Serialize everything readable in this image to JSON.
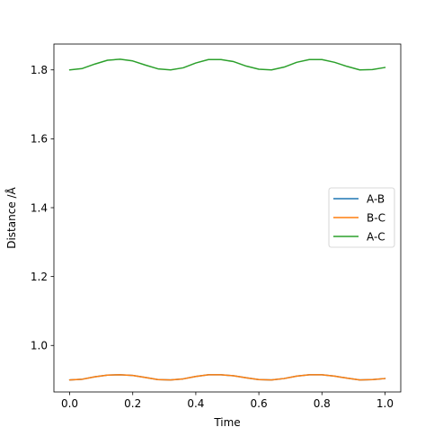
{
  "chart_data": {
    "type": "line",
    "title": "",
    "xlabel": "Time",
    "ylabel": "Distance /Å",
    "xlim": [
      -0.05,
      1.05
    ],
    "ylim": [
      0.865,
      1.875
    ],
    "xticks": [
      0.0,
      0.2,
      0.4,
      0.6,
      0.8,
      1.0
    ],
    "xtick_labels": [
      "0.0",
      "0.2",
      "0.4",
      "0.6",
      "0.8",
      "1.0"
    ],
    "yticks": [
      1.0,
      1.2,
      1.4,
      1.6,
      1.8
    ],
    "ytick_labels": [
      "1.0",
      "1.2",
      "1.4",
      "1.6",
      "1.8"
    ],
    "grid": false,
    "legend_position": "center-right",
    "series": [
      {
        "name": "A-B",
        "color": "#1f77b4",
        "x": [
          0.0,
          0.04,
          0.08,
          0.12,
          0.16,
          0.2,
          0.24,
          0.28,
          0.32,
          0.36,
          0.4,
          0.44,
          0.48,
          0.52,
          0.56,
          0.6,
          0.64,
          0.68,
          0.72,
          0.76,
          0.8,
          0.84,
          0.88,
          0.92,
          0.96,
          1.0
        ],
        "y": [
          0.9,
          0.902,
          0.909,
          0.914,
          0.915,
          0.913,
          0.907,
          0.901,
          0.9,
          0.903,
          0.91,
          0.915,
          0.915,
          0.912,
          0.906,
          0.901,
          0.9,
          0.904,
          0.911,
          0.915,
          0.915,
          0.911,
          0.905,
          0.9,
          0.901,
          0.904
        ]
      },
      {
        "name": "B-C",
        "color": "#ff7f0e",
        "x": [
          0.0,
          0.04,
          0.08,
          0.12,
          0.16,
          0.2,
          0.24,
          0.28,
          0.32,
          0.36,
          0.4,
          0.44,
          0.48,
          0.52,
          0.56,
          0.6,
          0.64,
          0.68,
          0.72,
          0.76,
          0.8,
          0.84,
          0.88,
          0.92,
          0.96,
          1.0
        ],
        "y": [
          0.9,
          0.902,
          0.909,
          0.914,
          0.915,
          0.913,
          0.907,
          0.901,
          0.9,
          0.903,
          0.91,
          0.915,
          0.915,
          0.912,
          0.906,
          0.901,
          0.9,
          0.904,
          0.911,
          0.915,
          0.915,
          0.911,
          0.905,
          0.9,
          0.901,
          0.904
        ]
      },
      {
        "name": "A-C",
        "color": "#2ca02c",
        "x": [
          0.0,
          0.04,
          0.08,
          0.12,
          0.16,
          0.2,
          0.24,
          0.28,
          0.32,
          0.36,
          0.4,
          0.44,
          0.48,
          0.52,
          0.56,
          0.6,
          0.64,
          0.68,
          0.72,
          0.76,
          0.8,
          0.84,
          0.88,
          0.92,
          0.96,
          1.0
        ],
        "y": [
          1.8,
          1.804,
          1.817,
          1.828,
          1.831,
          1.826,
          1.814,
          1.803,
          1.8,
          1.806,
          1.82,
          1.83,
          1.83,
          1.824,
          1.811,
          1.802,
          1.8,
          1.808,
          1.822,
          1.83,
          1.83,
          1.822,
          1.81,
          1.8,
          1.801,
          1.807
        ]
      }
    ]
  }
}
